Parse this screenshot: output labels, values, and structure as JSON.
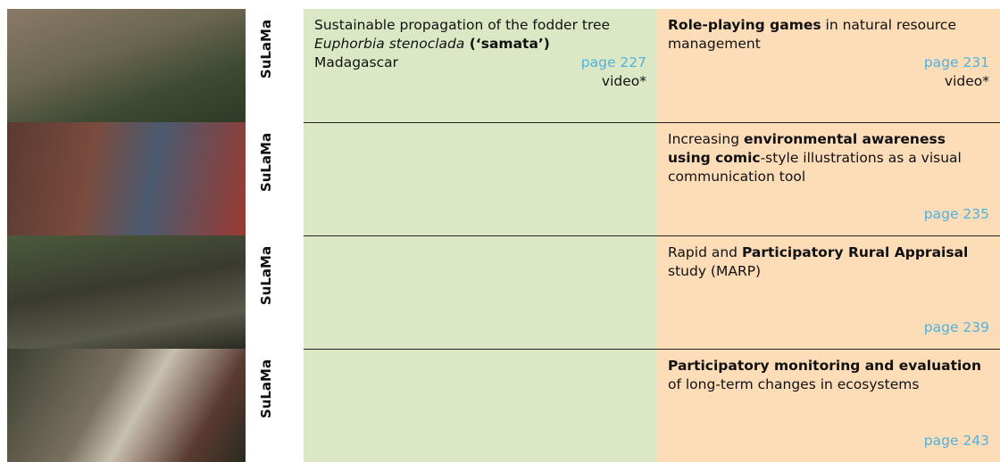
{
  "rows": [
    {
      "label": "SuLaMa",
      "green": {
        "segments": [
          {
            "text": "Sustainable propagation of the fodder tree ",
            "style": "normal"
          },
          {
            "text": "Euphorbia stenoclada",
            "style": "italic"
          },
          {
            "text": " (‘samata’)",
            "style": "bold"
          }
        ],
        "place": "Madagascar",
        "page": "page 227",
        "video": "video*"
      },
      "peach": {
        "segments": [
          {
            "text": "Role-playing games",
            "style": "bold"
          },
          {
            "text": " in natural resource management",
            "style": "normal"
          }
        ],
        "page": "page 231",
        "video": "video*"
      }
    },
    {
      "label": "SuLaMa",
      "peach": {
        "segments": [
          {
            "text": "Increasing ",
            "style": "normal"
          },
          {
            "text": "environmental awareness using comic",
            "style": "bold"
          },
          {
            "text": "-style illustrations as a visual communication tool",
            "style": "normal"
          }
        ],
        "page": "page 235"
      }
    },
    {
      "label": "SuLaMa",
      "peach": {
        "segments": [
          {
            "text": "Rapid and ",
            "style": "normal"
          },
          {
            "text": "Participatory Rural Appraisal",
            "style": "bold"
          },
          {
            "text": " study (MARP)",
            "style": "normal"
          }
        ],
        "page": "page 239"
      }
    },
    {
      "label": "SuLaMa",
      "peach": {
        "segments": [
          {
            "text": "Participatory monitoring and evaluation",
            "style": "bold"
          },
          {
            "text": " of long-term changes in ecosystems",
            "style": "normal"
          }
        ],
        "page": "page 243"
      }
    }
  ]
}
